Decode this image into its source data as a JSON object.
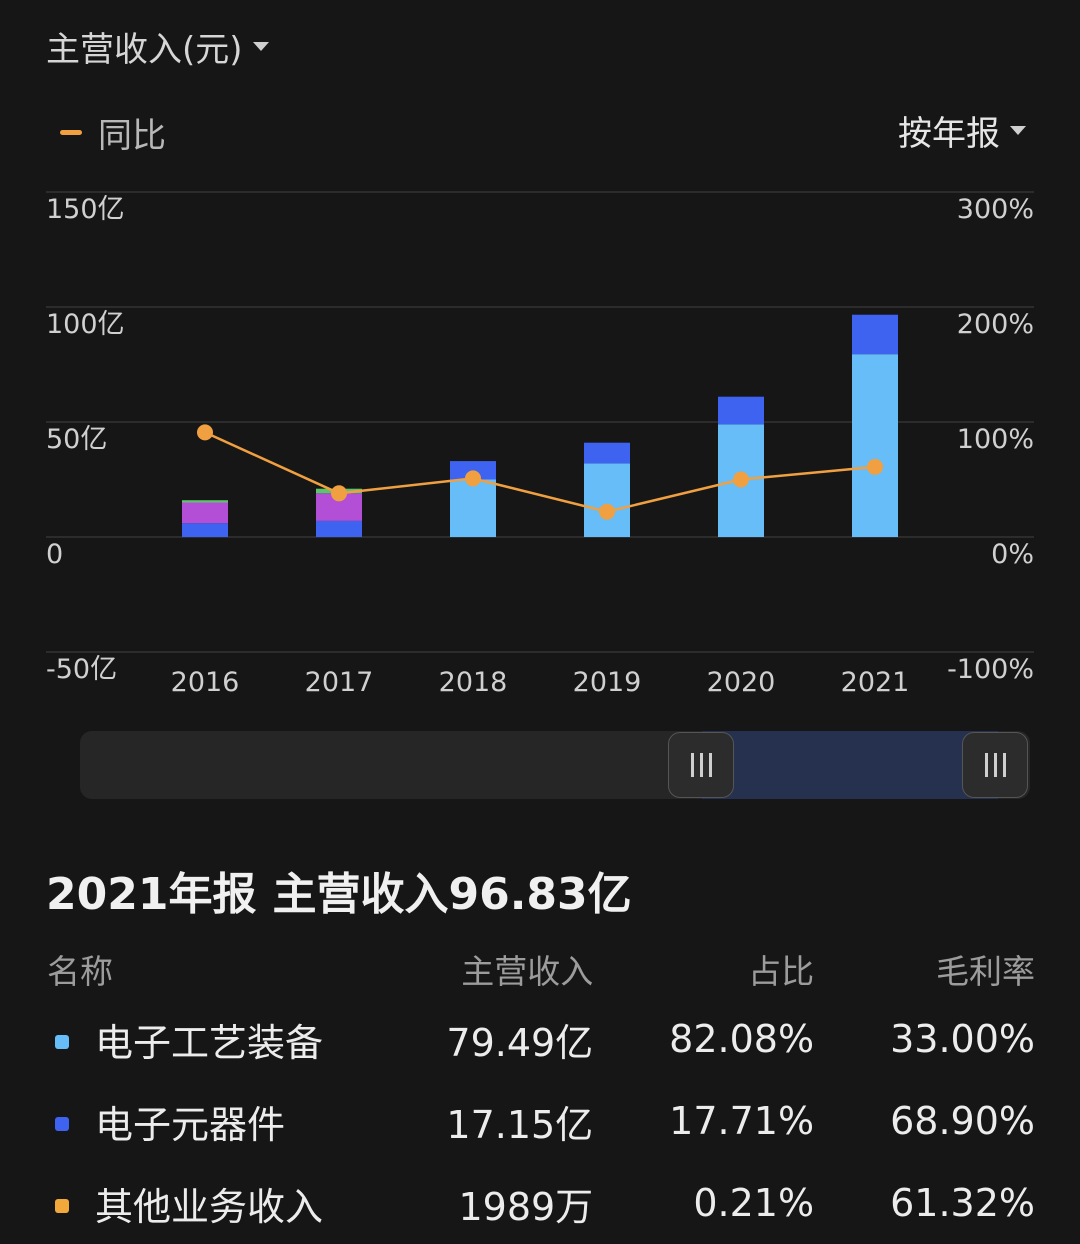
{
  "header": {
    "title": "主营收入(元)"
  },
  "legend": {
    "yoy_label": "同比"
  },
  "period_selector": {
    "label": "按年报"
  },
  "colors": {
    "electronic_equipment": "#66bdf8",
    "electronic_components": "#3e63f0",
    "other_business": "#f2a93b",
    "segment_purple": "#b34fd6",
    "segment_green": "#5cc46a",
    "yoy_line": "#f0a040"
  },
  "chart_data": {
    "type": "bar",
    "stacked": true,
    "categories": [
      "2016",
      "2017",
      "2018",
      "2019",
      "2020",
      "2021"
    ],
    "series": [
      {
        "name": "电子元器件",
        "color": "#3e63f0",
        "values": [
          6,
          7,
          0,
          0,
          0,
          0
        ]
      },
      {
        "color": "#b34fd6",
        "values": [
          9,
          12,
          0,
          0,
          0,
          0
        ]
      },
      {
        "color": "#5cc46a",
        "values": [
          1,
          2,
          0,
          0,
          0,
          0
        ]
      },
      {
        "name": "电子工艺装备",
        "color": "#66bdf8",
        "values": [
          0,
          0,
          25,
          32,
          49,
          79.49
        ]
      },
      {
        "name": "电子元器件",
        "color": "#3e63f0",
        "values": [
          0,
          0,
          8,
          9,
          12,
          17.15
        ]
      }
    ],
    "line_series": {
      "name": "同比",
      "color": "#f0a040",
      "axis": "right",
      "values": [
        91,
        38,
        51,
        22,
        50,
        61
      ]
    },
    "y_left": {
      "ticks": [
        "150亿",
        "100亿",
        "50亿",
        "0",
        "-50亿"
      ],
      "range": [
        -50,
        150
      ]
    },
    "y_right": {
      "ticks": [
        "300%",
        "200%",
        "100%",
        "0%",
        "-100%"
      ],
      "range": [
        -100,
        300
      ]
    },
    "grid": true
  },
  "slider": {
    "range_start_label": "",
    "range_end_label": ""
  },
  "summary": {
    "period": "2021年报",
    "metric": "主营收入96.83亿"
  },
  "table": {
    "headers": [
      "名称",
      "主营收入",
      "占比",
      "毛利率"
    ],
    "rows": [
      {
        "color": "#66bdf8",
        "name": "电子工艺装备",
        "revenue": "79.49亿",
        "share": "82.08%",
        "margin": "33.00%"
      },
      {
        "color": "#3e63f0",
        "name": "电子元器件",
        "revenue": "17.15亿",
        "share": "17.71%",
        "margin": "68.90%"
      },
      {
        "color": "#f2a93b",
        "name": "其他业务收入",
        "revenue": "1989万",
        "share": "0.21%",
        "margin": "61.32%"
      }
    ]
  }
}
